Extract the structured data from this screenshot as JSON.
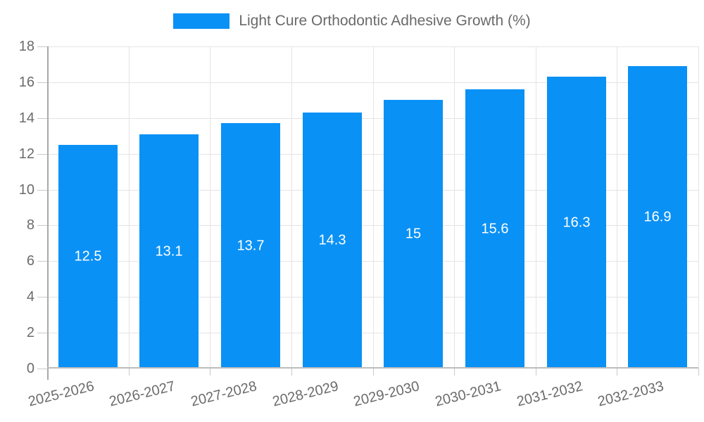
{
  "legend": {
    "label": "Light Cure Orthodontic Adhesive Growth (%)"
  },
  "chart_data": {
    "type": "bar",
    "title": "Light Cure Orthodontic Adhesive Growth (%)",
    "categories": [
      "2025-2026",
      "2026-2027",
      "2027-2028",
      "2028-2029",
      "2029-2030",
      "2030-2031",
      "2031-2032",
      "2032-2033"
    ],
    "values": [
      12.5,
      13.1,
      13.7,
      14.3,
      15,
      15.6,
      16.3,
      16.9
    ],
    "value_labels": [
      "12.5",
      "13.1",
      "13.7",
      "14.3",
      "15",
      "15.6",
      "16.3",
      "16.9"
    ],
    "xlabel": "",
    "ylabel": "",
    "ylim": [
      0,
      18
    ],
    "ytick_step": 2,
    "grid": true,
    "legend_position": "top",
    "x_label_rotation_deg": -14
  },
  "colors": {
    "bar": "#0A91F5",
    "value_label": "#FFFFFF",
    "gridline": "#E4E4E4",
    "tick": "#C9C9C9",
    "y_axis_line": "#A9A9A9",
    "x_axis_line": "#BDBDBD",
    "axis_text": "#6B6B6B",
    "legend_text": "#6A6A6A",
    "background": "#FFFFFF"
  }
}
